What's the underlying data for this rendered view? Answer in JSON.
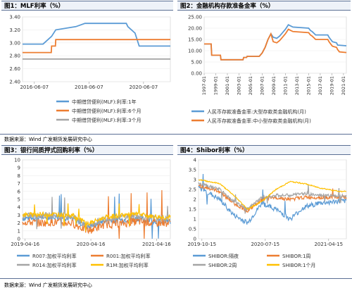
{
  "source_text": "数据来源：Wind  广发期货发展研究中心",
  "chart_data": [
    {
      "title": "图1：MLF利率（%）",
      "type": "line",
      "x_ticks": [
        "2016-06-07",
        "2018-06-07",
        "2020-06-07"
      ],
      "y_ticks": [
        "2.40",
        "2.60",
        "2.80",
        "3.00",
        "3.20",
        "3.40"
      ],
      "ylim": [
        2.4,
        3.4
      ],
      "xlim": [
        "2016-01-01",
        "2021-06-01"
      ],
      "legend_position": "bottom",
      "series": [
        {
          "name": "中期借贷便利(MLF):利率:1年",
          "color": "#5b9bd5",
          "x": [
            "2016-01-01",
            "2016-10-01",
            "2016-10-20",
            "2017-01-25",
            "2017-03-20",
            "2017-12-15",
            "2018-04-15",
            "2019-10-20",
            "2019-11-10",
            "2020-02-15",
            "2020-04-10",
            "2021-06-01"
          ],
          "values": [
            2.98,
            2.98,
            3.0,
            3.1,
            3.2,
            3.25,
            3.3,
            3.3,
            3.25,
            3.15,
            2.95,
            2.95
          ]
        },
        {
          "name": "中期借贷便利(MLF):利率:6个月",
          "color": "#ed7d31",
          "x": [
            "2016-01-01",
            "2017-01-20",
            "2017-01-25",
            "2017-03-15",
            "2017-03-20",
            "2021-06-01"
          ],
          "values": [
            2.85,
            2.85,
            2.95,
            2.95,
            3.05,
            3.05
          ]
        },
        {
          "name": "中期借贷便利(MLF):利率:3个月",
          "color": "#a5a5a5",
          "x": [
            "2016-01-01",
            "2021-06-01"
          ],
          "values": [
            2.75,
            2.75
          ]
        }
      ]
    },
    {
      "title": "图2：金融机构存款准备金率（%）",
      "type": "line",
      "x_ticks": [
        "1997-01",
        "1999-01",
        "2001-01",
        "2003-01",
        "2005-01",
        "2007-01",
        "2009-01",
        "2011-01",
        "2013-01",
        "2015-01",
        "2017-01",
        "2019-01",
        "2021-01"
      ],
      "y_ticks": [
        "0.00",
        "5.00",
        "10.00",
        "15.00",
        "20.00",
        "25.00"
      ],
      "ylim": [
        0,
        25
      ],
      "xlim": [
        1997,
        2021.5
      ],
      "legend_position": "bottom",
      "series": [
        {
          "name": "人民币存款准备金率:大型存款类金融机构(月)",
          "color": "#5b9bd5",
          "x": [
            1997,
            1998.2,
            1998.3,
            1999.8,
            1999.9,
            2003.7,
            2003.8,
            2004.3,
            2004.4,
            2006.5,
            2007,
            2007.5,
            2008,
            2008.5,
            2008.9,
            2009.5,
            2010,
            2010.5,
            2011,
            2011.5,
            2011.9,
            2012.3,
            2015,
            2015.3,
            2015.6,
            2016,
            2016.2,
            2018.3,
            2018.5,
            2018.8,
            2019.1,
            2019.8,
            2020,
            2021.5
          ],
          "values": [
            13,
            13,
            8,
            8,
            6,
            6,
            7,
            7,
            7.5,
            7.5,
            9,
            11.5,
            15,
            17.5,
            16,
            15.5,
            16.5,
            18,
            19.5,
            21.5,
            21,
            20.5,
            20,
            19,
            18.5,
            17.5,
            17,
            17,
            16,
            15,
            14,
            13.5,
            12.5,
            12.2
          ]
        },
        {
          "name": "人民币存款准备金率:中小型存款类金融机构(月)",
          "color": "#ed7d31",
          "x": [
            1997,
            1998.2,
            1998.3,
            1999.8,
            1999.9,
            2003.7,
            2003.8,
            2004.3,
            2004.4,
            2006.5,
            2007,
            2007.5,
            2008,
            2008.5,
            2008.9,
            2009.5,
            2010,
            2010.5,
            2011,
            2011.5,
            2011.9,
            2012.3,
            2015,
            2015.3,
            2015.6,
            2016,
            2016.2,
            2018.3,
            2018.5,
            2018.8,
            2019.1,
            2019.8,
            2020,
            2020.3,
            2021.5
          ],
          "values": [
            13,
            13,
            8,
            8,
            6,
            6,
            7,
            7,
            7.5,
            7.5,
            9,
            11.5,
            15,
            17.5,
            14,
            13.5,
            14.5,
            16,
            17.5,
            19.5,
            19,
            18.5,
            18,
            17,
            16.5,
            15.5,
            15,
            15,
            14,
            13,
            12,
            11.5,
            10.5,
            9.5,
            9.2
          ]
        }
      ]
    },
    {
      "title": "图3：银行间质押式回购利率（%）",
      "type": "line",
      "x_ticks": [
        "2019-04-16",
        "2020-04-16",
        "2021-04-16"
      ],
      "y_ticks": [
        "0",
        "1",
        "2",
        "3",
        "4",
        "5",
        "6",
        "7",
        "8",
        "9",
        "10"
      ],
      "ylim": [
        0,
        10
      ],
      "legend_position": "bottom",
      "series": [
        {
          "name": "R007:加权平均利率",
          "color": "#5b9bd5",
          "x": [
            "2019-04",
            "2019-07",
            "2019-10",
            "2020-01",
            "2020-04",
            "2020-07",
            "2020-10",
            "2021-01",
            "2021-04",
            "2021-06"
          ],
          "values": [
            2.6,
            2.7,
            2.8,
            2.6,
            1.5,
            2.3,
            2.4,
            2.6,
            2.3,
            2.2
          ]
        },
        {
          "name": "R001:加权平均利率",
          "color": "#ed7d31",
          "x": [
            "2019-04",
            "2019-07",
            "2019-10",
            "2020-01",
            "2020-04",
            "2020-07",
            "2020-10",
            "2021-01",
            "2021-04",
            "2021-06"
          ],
          "values": [
            2.2,
            2.0,
            2.1,
            2.0,
            1.0,
            1.8,
            1.9,
            2.2,
            2.0,
            2.0
          ]
        },
        {
          "name": "R014:加权平均利率",
          "color": "#a5a5a5",
          "x": [
            "2019-04",
            "2019-07",
            "2019-10",
            "2020-01",
            "2020-04",
            "2020-07",
            "2020-10",
            "2021-01",
            "2021-04",
            "2021-06"
          ],
          "values": [
            2.9,
            2.9,
            3.0,
            2.8,
            1.7,
            2.5,
            2.8,
            2.9,
            2.6,
            2.5
          ]
        },
        {
          "name": "R1M:加权平均利率",
          "color": "#ffc000",
          "x": [
            "2019-04",
            "2019-07",
            "2019-10",
            "2020-01",
            "2020-04",
            "2020-07",
            "2020-10",
            "2021-01",
            "2021-04",
            "2021-06"
          ],
          "values": [
            3.0,
            3.1,
            3.1,
            3.0,
            1.9,
            2.7,
            3.0,
            3.1,
            2.8,
            2.7
          ]
        }
      ]
    },
    {
      "title": "图4：Shibor利率（%）",
      "type": "line",
      "x_ticks": [
        "2019-10-15",
        "2020-07-15",
        "2021-04-15"
      ],
      "y_ticks": [
        "0",
        "0.5",
        "1",
        "1.5",
        "2",
        "2.5",
        "3",
        "3.5",
        "4"
      ],
      "ylim": [
        0,
        4
      ],
      "legend_position": "bottom",
      "series": [
        {
          "name": "SHIBOR:隔夜",
          "color": "#5b9bd5",
          "x": [
            "2019-10",
            "2020-01",
            "2020-03",
            "2020-05",
            "2020-07",
            "2020-09",
            "2020-11",
            "2021-01",
            "2021-03",
            "2021-06"
          ],
          "values": [
            2.6,
            2.0,
            1.2,
            0.8,
            1.8,
            1.5,
            1.0,
            1.6,
            1.8,
            1.9
          ]
        },
        {
          "name": "SHIBOR:1周",
          "color": "#ed7d31",
          "x": [
            "2019-10",
            "2020-01",
            "2020-03",
            "2020-05",
            "2020-07",
            "2020-09",
            "2020-11",
            "2021-01",
            "2021-03",
            "2021-06"
          ],
          "values": [
            2.7,
            2.4,
            1.8,
            1.4,
            2.0,
            2.1,
            2.0,
            2.1,
            2.1,
            2.1
          ]
        },
        {
          "name": "SHIBOR:2周",
          "color": "#a5a5a5",
          "x": [
            "2019-10",
            "2020-01",
            "2020-03",
            "2020-05",
            "2020-07",
            "2020-09",
            "2020-11",
            "2021-01",
            "2021-03",
            "2021-06"
          ],
          "values": [
            2.8,
            2.5,
            1.9,
            1.5,
            2.1,
            2.2,
            2.2,
            2.3,
            2.2,
            2.2
          ]
        },
        {
          "name": "SHIBOR:1个月",
          "color": "#ffc000",
          "x": [
            "2019-10",
            "2020-01",
            "2020-03",
            "2020-05",
            "2020-07",
            "2020-09",
            "2020-11",
            "2021-01",
            "2021-03",
            "2021-06"
          ],
          "values": [
            3.0,
            2.8,
            2.2,
            1.5,
            1.9,
            2.5,
            2.9,
            2.8,
            2.6,
            2.4
          ]
        }
      ]
    }
  ]
}
